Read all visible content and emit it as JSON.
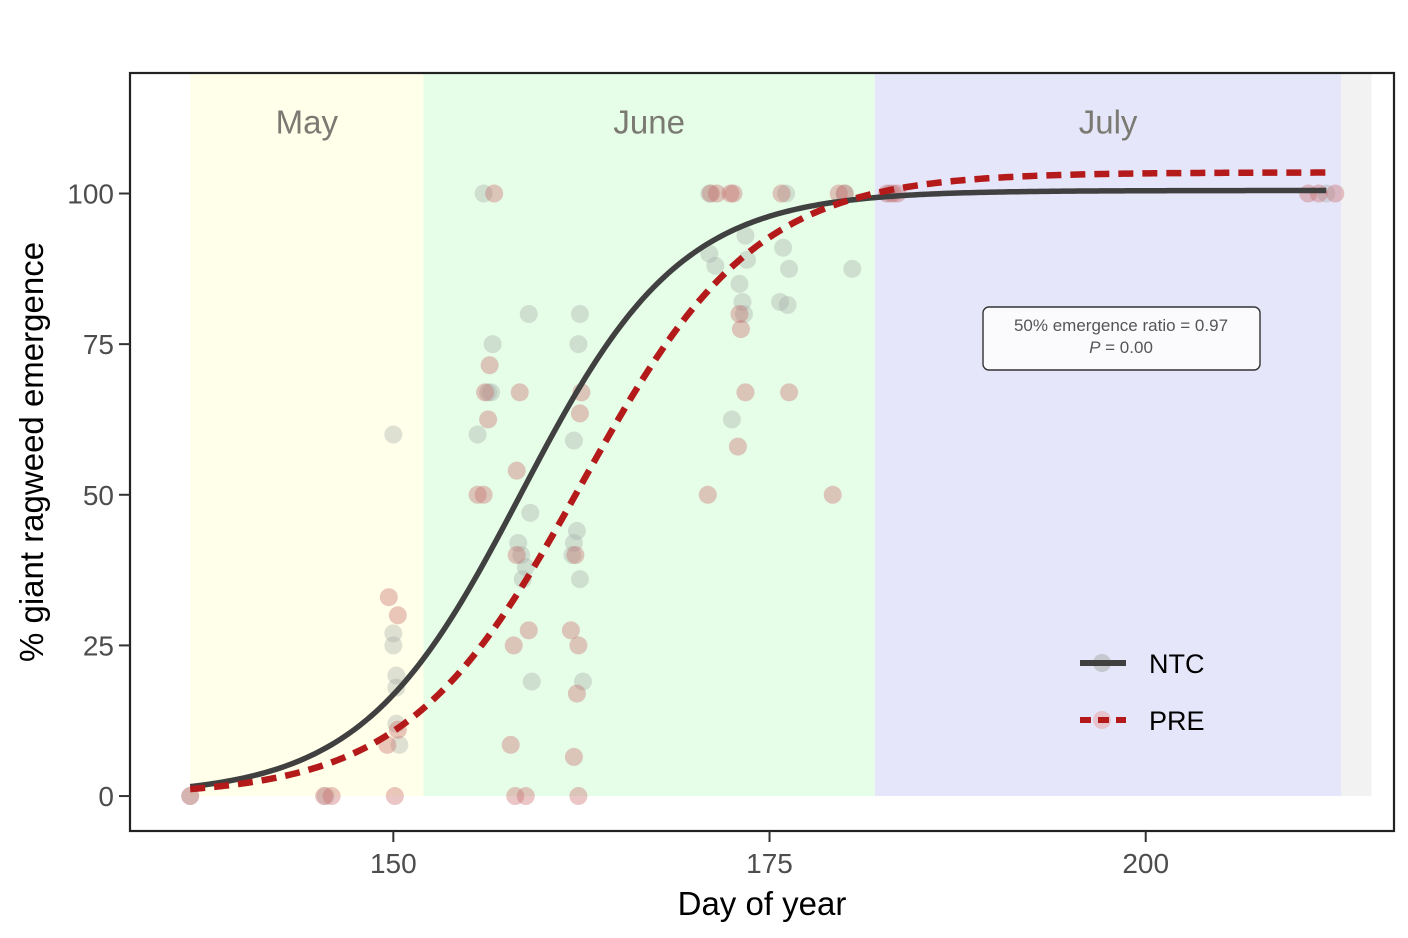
{
  "chart_data": {
    "type": "scatter",
    "xlabel": "Day of year",
    "ylabel": "% giant ragweed emergence",
    "xlim": [
      132.5,
      216.5
    ],
    "ylim": [
      -5.8,
      120
    ],
    "x_ticks": [
      150,
      175,
      200
    ],
    "y_ticks": [
      0,
      25,
      50,
      75,
      100
    ],
    "grid": false,
    "legend_position": "bottom-right",
    "months": [
      {
        "label": "May",
        "start": 136.5,
        "end": 152,
        "color": "#ffffea"
      },
      {
        "label": "June",
        "start": 152,
        "end": 182,
        "color": "#e6fde8"
      },
      {
        "label": "July",
        "start": 182,
        "end": 213,
        "color": "#e6e6fa"
      },
      {
        "label": "",
        "start": 213,
        "end": 215,
        "color": "#f2f2f2"
      }
    ],
    "annotation": {
      "line1": "50% emergence ratio = 0.97",
      "line2_italic": "P",
      "line2_rest": " = 0.00"
    },
    "series": [
      {
        "name": "NTC",
        "color": "#404040",
        "line_style": "solid",
        "curve": {
          "x_start": 136.5,
          "x_end": 212,
          "asymptote": 100.5,
          "midpoint": 158.5,
          "scale": 5.3
        },
        "points": [
          [
            136.5,
            0
          ],
          [
            145.5,
            0
          ],
          [
            150,
            25
          ],
          [
            150,
            27
          ],
          [
            150.2,
            18
          ],
          [
            150.2,
            20
          ],
          [
            150.2,
            12
          ],
          [
            150.4,
            8.5
          ],
          [
            150,
            60
          ],
          [
            155.6,
            60
          ],
          [
            156,
            100
          ],
          [
            156.3,
            67
          ],
          [
            156.6,
            75
          ],
          [
            156.5,
            67
          ],
          [
            158.3,
            42
          ],
          [
            158.5,
            40
          ],
          [
            158.6,
            36
          ],
          [
            158.8,
            38
          ],
          [
            159,
            80
          ],
          [
            159.1,
            47
          ],
          [
            159.2,
            19
          ],
          [
            161.9,
            40
          ],
          [
            162,
            59
          ],
          [
            162,
            42
          ],
          [
            162.2,
            44
          ],
          [
            162.4,
            80
          ],
          [
            162.3,
            75
          ],
          [
            162.4,
            36
          ],
          [
            162.6,
            19
          ],
          [
            171,
            100
          ],
          [
            171,
            90
          ],
          [
            171.4,
            88
          ],
          [
            172.5,
            62.5
          ],
          [
            173,
            85
          ],
          [
            173.2,
            82
          ],
          [
            173.3,
            80
          ],
          [
            173.4,
            93
          ],
          [
            173.5,
            89
          ],
          [
            175.7,
            82
          ],
          [
            175.9,
            91
          ],
          [
            176.1,
            100
          ],
          [
            176.3,
            87.5
          ],
          [
            176.2,
            81.5
          ],
          [
            180,
            100
          ],
          [
            180.5,
            87.5
          ],
          [
            183,
            100
          ],
          [
            212,
            100
          ]
        ]
      },
      {
        "name": "PRE",
        "color": "#b41a1a",
        "line_style": "dashed",
        "curve": {
          "x_start": 136.5,
          "x_end": 212,
          "asymptote": 103.5,
          "midpoint": 162.5,
          "scale": 5.8
        },
        "points": [
          [
            136.5,
            0
          ],
          [
            145.4,
            0
          ],
          [
            145.9,
            0
          ],
          [
            149.7,
            33
          ],
          [
            149.6,
            8.5
          ],
          [
            150.1,
            0
          ],
          [
            150.3,
            30
          ],
          [
            150.3,
            11
          ],
          [
            155.6,
            50
          ],
          [
            156,
            50
          ],
          [
            156.1,
            67
          ],
          [
            156.4,
            71.5
          ],
          [
            156.3,
            62.5
          ],
          [
            156.7,
            100
          ],
          [
            157.8,
            8.5
          ],
          [
            158,
            25
          ],
          [
            158.1,
            0
          ],
          [
            158.2,
            40
          ],
          [
            158.2,
            54
          ],
          [
            158.4,
            67
          ],
          [
            158.8,
            0
          ],
          [
            159,
            27.5
          ],
          [
            161.8,
            27.5
          ],
          [
            162,
            6.5
          ],
          [
            162.1,
            40
          ],
          [
            162.2,
            17
          ],
          [
            162.3,
            25
          ],
          [
            162.3,
            0
          ],
          [
            162.4,
            63.5
          ],
          [
            162.5,
            67
          ],
          [
            170.9,
            50
          ],
          [
            171.1,
            100
          ],
          [
            171.5,
            100
          ],
          [
            172.4,
            100
          ],
          [
            172.6,
            100
          ],
          [
            172.9,
            58
          ],
          [
            173,
            80
          ],
          [
            173.1,
            77.5
          ],
          [
            173.4,
            67
          ],
          [
            175.8,
            100
          ],
          [
            176.3,
            67
          ],
          [
            179.2,
            50
          ],
          [
            179.6,
            100
          ],
          [
            180,
            100
          ],
          [
            182.8,
            100
          ],
          [
            183.2,
            100
          ],
          [
            183.5,
            100
          ],
          [
            210.8,
            100
          ],
          [
            211.5,
            100
          ],
          [
            212.6,
            100
          ]
        ]
      }
    ]
  }
}
